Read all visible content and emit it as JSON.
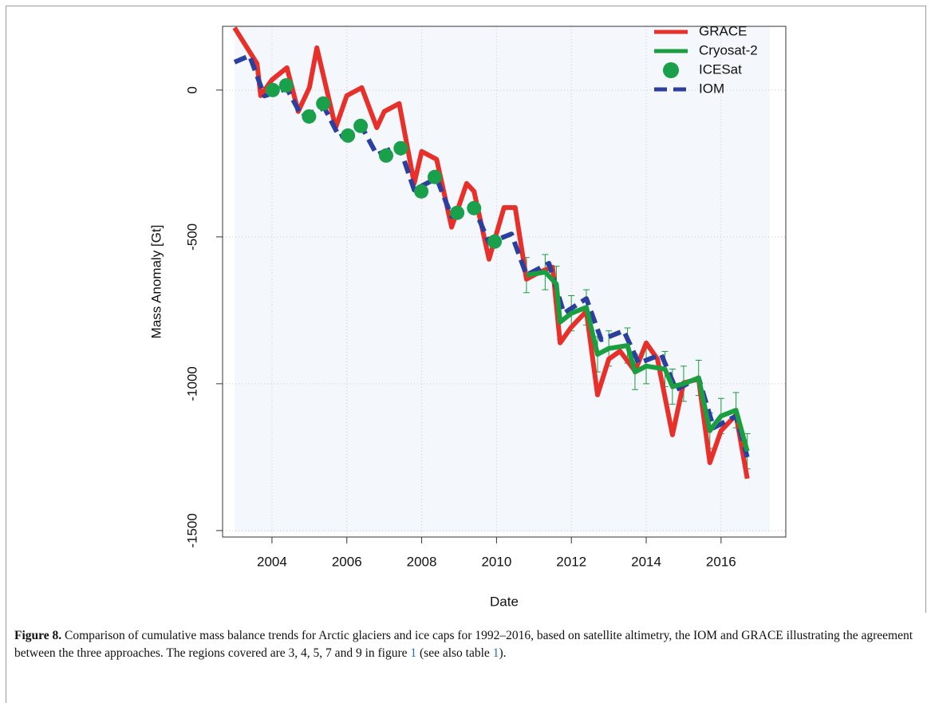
{
  "chart_data": {
    "type": "line",
    "xlabel": "Date",
    "ylabel": "Mass Anomaly [Gt]",
    "xlim": [
      2002.68,
      2017.73
    ],
    "ylim": [
      -1522,
      217
    ],
    "xticks": [
      2004,
      2006,
      2008,
      2010,
      2012,
      2014,
      2016
    ],
    "yticks": [
      0,
      -500,
      -1000,
      -1500
    ],
    "grid": true,
    "legend": "top-right",
    "series": [
      {
        "name": "GRACE",
        "color": "#e8302a",
        "x": [
          2003.0,
          2003.6,
          2003.7,
          2004.0,
          2004.4,
          2004.7,
          2005.0,
          2005.2,
          2005.7,
          2006.0,
          2006.4,
          2006.8,
          2007.0,
          2007.4,
          2007.8,
          2008.0,
          2008.4,
          2008.8,
          2009.2,
          2009.4,
          2009.8,
          2010.2,
          2010.5,
          2010.8,
          2011.2,
          2011.5,
          2011.7,
          2012.0,
          2012.4,
          2012.7,
          2013.0,
          2013.3,
          2013.7,
          2014.0,
          2014.3,
          2014.7,
          2015.0,
          2015.4,
          2015.7,
          2016.0,
          2016.4,
          2016.7
        ],
        "values": [
          212,
          90,
          -19,
          35,
          76,
          -73,
          8,
          144,
          -128,
          -19,
          8,
          -128,
          -73,
          -46,
          -318,
          -209,
          -236,
          -467,
          -318,
          -345,
          -576,
          -400,
          -400,
          -644,
          -617,
          -603,
          -861,
          -807,
          -753,
          -1038,
          -916,
          -889,
          -957,
          -861,
          -916,
          -1174,
          -997,
          -984,
          -1269,
          -1160,
          -1106,
          -1323
        ]
      },
      {
        "name": "Cryosat-2",
        "color": "#1a9e3f",
        "x": [
          2010.8,
          2011.3,
          2011.6,
          2011.7,
          2012.0,
          2012.4,
          2012.7,
          2013.0,
          2013.5,
          2013.7,
          2014.0,
          2014.5,
          2014.7,
          2015.0,
          2015.4,
          2015.7,
          2016.0,
          2016.4,
          2016.7
        ],
        "values": [
          -630,
          -620,
          -660,
          -790,
          -760,
          -740,
          -900,
          -880,
          -870,
          -960,
          -940,
          -950,
          -1010,
          -1000,
          -980,
          -1160,
          -1110,
          -1090,
          -1230
        ],
        "errors": [
          60,
          60,
          60,
          60,
          60,
          60,
          60,
          60,
          60,
          60,
          60,
          60,
          60,
          60,
          60,
          60,
          60,
          60,
          60
        ]
      },
      {
        "name": "ICESat",
        "color": "#1aa04a",
        "marker": "circle",
        "x": [
          2004.02,
          2004.38,
          2004.99,
          2005.37,
          2006.03,
          2006.37,
          2007.05,
          2007.44,
          2007.99,
          2008.35,
          2008.95,
          2009.4,
          2009.95
        ],
        "values": [
          0,
          16,
          -90,
          -46,
          -155,
          -122,
          -223,
          -198,
          -345,
          -296,
          -418,
          -402,
          -516
        ]
      },
      {
        "name": "IOM",
        "color": "#2b3f9e",
        "dashed": true,
        "x": [
          2003.0,
          2003.4,
          2003.8,
          2004.4,
          2004.8,
          2005.4,
          2005.8,
          2006.4,
          2006.8,
          2007.4,
          2007.8,
          2008.4,
          2008.8,
          2009.4,
          2009.8,
          2010.4,
          2010.8,
          2011.4,
          2011.8,
          2012.4,
          2012.8,
          2013.4,
          2013.8,
          2014.4,
          2014.8,
          2015.4,
          2015.8,
          2016.4,
          2016.7
        ],
        "values": [
          95,
          117,
          -20,
          5,
          -90,
          -60,
          -160,
          -125,
          -220,
          -190,
          -340,
          -300,
          -430,
          -400,
          -520,
          -490,
          -630,
          -590,
          -760,
          -710,
          -850,
          -820,
          -930,
          -900,
          -1020,
          -980,
          -1150,
          -1110,
          -1250
        ]
      }
    ]
  },
  "caption": {
    "label": "Figure 8.",
    "parts": [
      {
        "text": "Comparison of cumulative mass balance trends for Arctic glaciers and ice caps for 1992–2016, based on satellite altimetry, the IOM and GRACE illustrating the agreement between the three approaches. The regions covered are 3, 4, 5, 7 and 9 in figure "
      },
      {
        "link": "1"
      },
      {
        "text": " (see also table "
      },
      {
        "link": "1"
      },
      {
        "text": ")."
      }
    ]
  }
}
